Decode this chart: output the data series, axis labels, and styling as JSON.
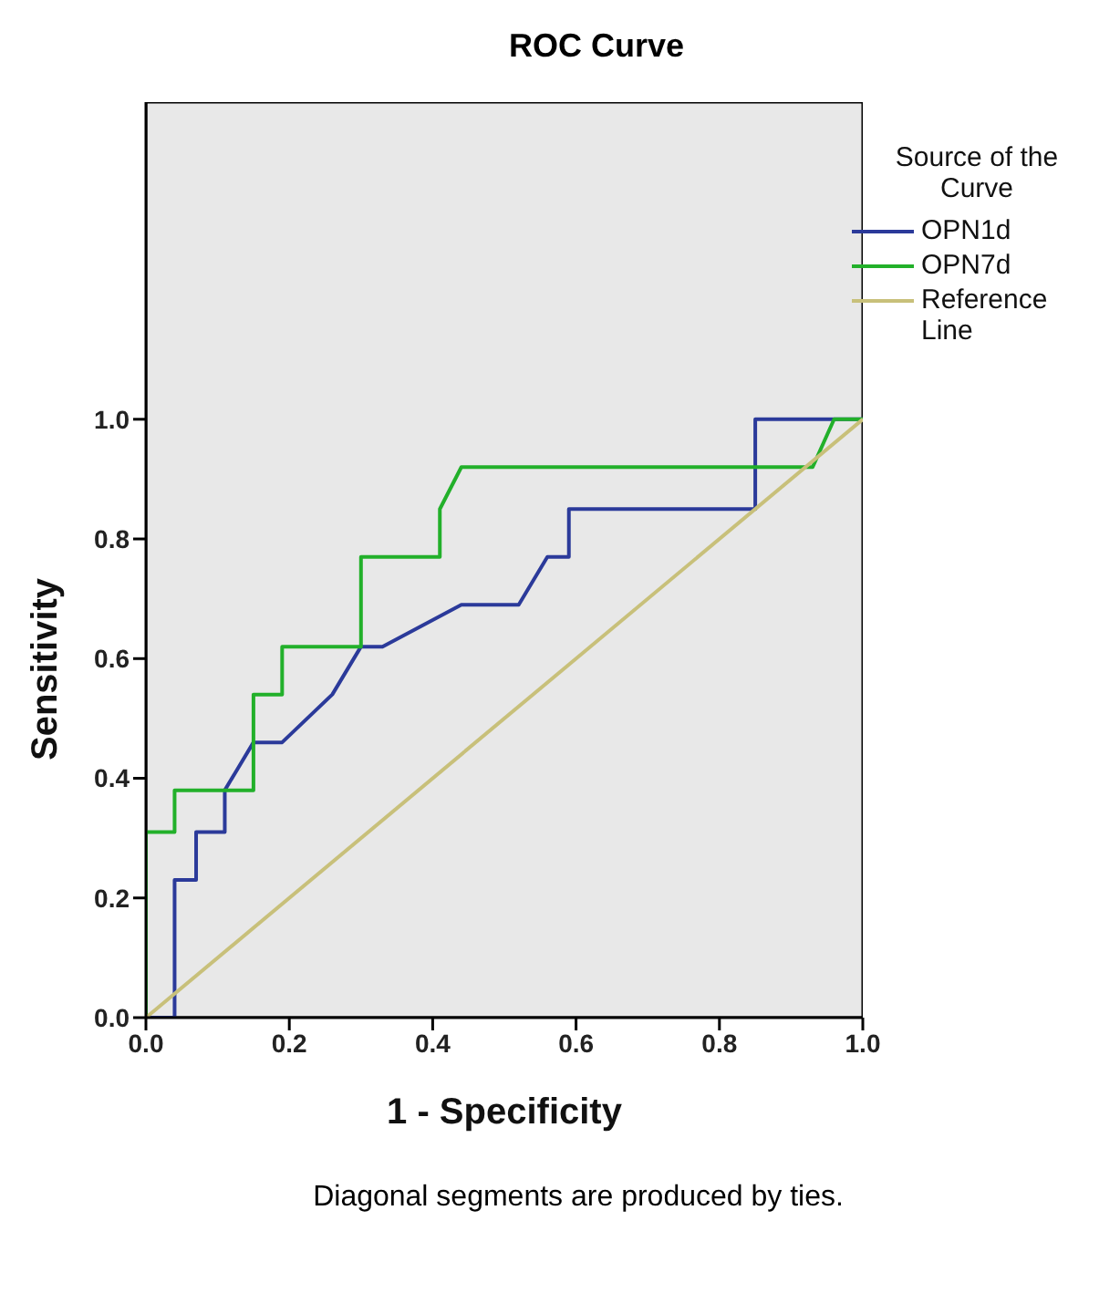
{
  "chart_data": {
    "type": "line",
    "title": "ROC Curve",
    "xlabel": "1 - Specificity",
    "ylabel": "Sensitivity",
    "legend_title": "Source of the Curve",
    "legend": "right",
    "grid": false,
    "marker": "none",
    "line_style": "solid",
    "xlim": [
      0,
      1
    ],
    "xticks": [
      {
        "value": 0,
        "label": "0.0"
      },
      0.2,
      0.4,
      0.6,
      0.8,
      {
        "value": 1,
        "label": "1.0"
      }
    ],
    "ylim": [
      0,
      1.53
    ],
    "yticks": [
      {
        "value": 0,
        "label": "0.0"
      },
      0.2,
      0.4,
      0.6,
      0.8,
      {
        "value": 1,
        "label": "1.0"
      }
    ],
    "series": [
      {
        "name": "OPN1d",
        "color": "#2b3a9a",
        "x": [
          0,
          0.04,
          0.04,
          0.07,
          0.07,
          0.11,
          0.11,
          0.15,
          0.19,
          0.26,
          0.3,
          0.33,
          0.44,
          0.52,
          0.56,
          0.59,
          0.59,
          0.85,
          0.85,
          1
        ],
        "values": [
          0,
          0,
          0.23,
          0.23,
          0.31,
          0.31,
          0.38,
          0.46,
          0.46,
          0.54,
          0.62,
          0.62,
          0.69,
          0.69,
          0.77,
          0.77,
          0.85,
          0.85,
          1.0,
          1.0
        ]
      },
      {
        "name": "OPN7d",
        "color": "#22b02a",
        "x": [
          0,
          0,
          0.04,
          0.04,
          0.15,
          0.15,
          0.19,
          0.19,
          0.3,
          0.3,
          0.41,
          0.41,
          0.44,
          0.93,
          0.96,
          1
        ],
        "values": [
          0,
          0.31,
          0.31,
          0.38,
          0.38,
          0.54,
          0.54,
          0.62,
          0.62,
          0.77,
          0.77,
          0.85,
          0.92,
          0.92,
          1.0,
          1.0
        ]
      },
      {
        "name": "Reference Line",
        "color": "#c8c07a",
        "x": [
          0,
          1
        ],
        "values": [
          0,
          1
        ]
      }
    ],
    "annotations": [
      "Diagonal segments are produced by ties."
    ]
  }
}
